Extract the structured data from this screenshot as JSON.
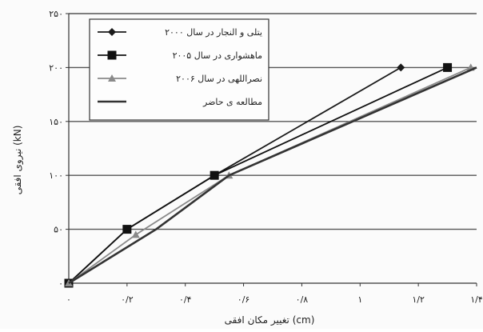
{
  "chart_data": {
    "type": "line",
    "title": "",
    "xlabel": "تغییر مکان افقی (cm)",
    "ylabel": "نیروی افقی (kN)",
    "xlim": [
      0,
      1.4
    ],
    "ylim": [
      0,
      250
    ],
    "x_ticks": [
      "۰",
      "۰/۲",
      "۰/۴",
      "۰/۶",
      "۰/۸",
      "۱",
      "۱/۲",
      "۱/۴"
    ],
    "x_tick_values": [
      0,
      0.2,
      0.4,
      0.6,
      0.8,
      1.0,
      1.2,
      1.4
    ],
    "y_ticks": [
      "۰",
      "۵۰",
      "۱۰۰",
      "۱۵۰",
      "۲۰۰",
      "۲۵۰"
    ],
    "y_tick_values": [
      0,
      50,
      100,
      150,
      200,
      250
    ],
    "grid": "horizontal",
    "legend_position": "top-left",
    "series": [
      {
        "name": "یتلی و النجار در سال ۲۰۰۰",
        "color": "#1a1a1a",
        "marker": "diamond",
        "x": [
          0,
          0.2,
          0.5,
          1.14
        ],
        "y": [
          0,
          50,
          100,
          200
        ]
      },
      {
        "name": "ماهشواری در سال ۲۰۰۵",
        "color": "#111111",
        "marker": "square",
        "x": [
          0,
          0.2,
          0.5,
          1.3
        ],
        "y": [
          0,
          50,
          100,
          200
        ]
      },
      {
        "name": "نصراللهی در سال ۲۰۰۶",
        "color": "#8a8a8a",
        "marker": "triangle",
        "x": [
          0,
          0.23,
          0.55,
          1.38
        ],
        "y": [
          0,
          45,
          100,
          200
        ]
      },
      {
        "name": "مطالعه ی حاضر",
        "color": "#333333",
        "marker": "none",
        "x": [
          0,
          0.3,
          0.55,
          1.4
        ],
        "y": [
          0,
          50,
          100,
          200
        ]
      }
    ]
  }
}
